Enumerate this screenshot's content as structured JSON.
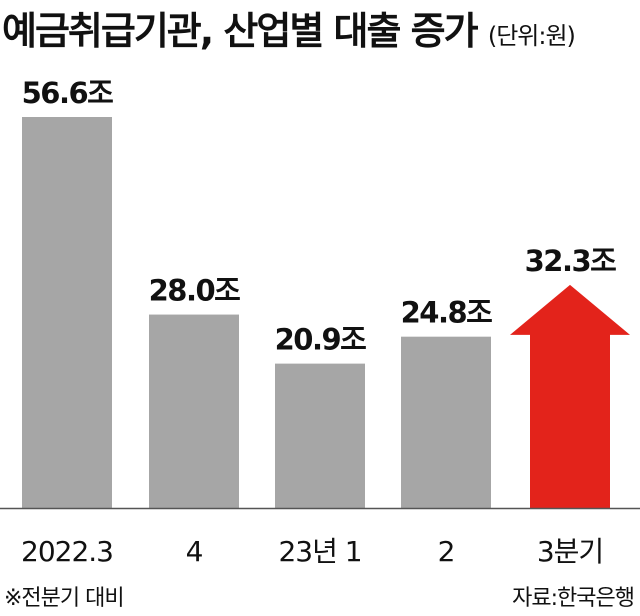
{
  "title": "예금취급기관, 산업별 대출 증가",
  "unit": "(단위:원)",
  "footnote": "※전분기 대비",
  "source": "자료:한국은행",
  "colors": {
    "bar": "#a6a6a6",
    "highlight": "#e3231b",
    "axis": "#555555"
  },
  "chart_data": {
    "type": "bar",
    "categories": [
      "2022.3",
      "4",
      "23년 1",
      "2",
      "3분기"
    ],
    "values": [
      56.6,
      28.0,
      20.9,
      24.8,
      32.3
    ],
    "data_labels": [
      "56.6조",
      "28.0조",
      "20.9조",
      "24.8조",
      "32.3조"
    ],
    "highlight_index": 4,
    "highlight_shape": "up-arrow",
    "ylim": [
      0,
      60
    ],
    "grid": false
  }
}
